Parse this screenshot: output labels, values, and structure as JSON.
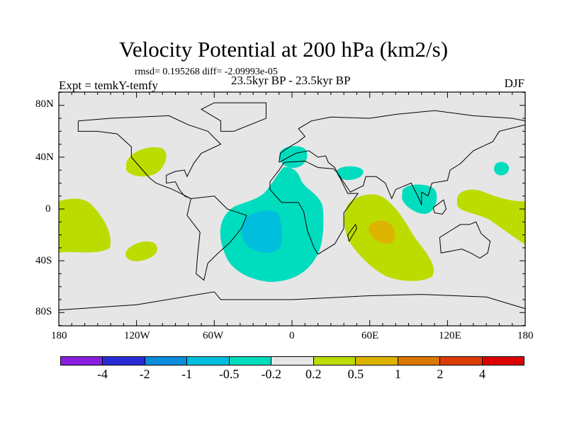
{
  "title": "Velocity Potential at 200 hPa (km2/s)",
  "stats": "rmsd= 0.195268 diff= -2.09993e-05",
  "experiment": "Expt = temkY-temfy",
  "center_label": "23.5kyr BP - 23.5kyr BP",
  "season": "DJF",
  "lat_ticks": [
    "80N",
    "40N",
    "0",
    "40S",
    "80S"
  ],
  "lon_ticks": [
    "180",
    "120W",
    "60W",
    "0",
    "60E",
    "120E",
    "180"
  ],
  "colorbar": {
    "colors": [
      "#8a1ee0",
      "#2b2bd6",
      "#0a8cdc",
      "#00bedc",
      "#00dcbe",
      "#e6e6e6",
      "#bcdc00",
      "#dcb400",
      "#dc7800",
      "#dc3c00",
      "#dc0000"
    ],
    "labels": [
      "-4",
      "-2",
      "-1",
      "-0.5",
      "-0.2",
      "0.2",
      "0.5",
      "1",
      "2",
      "4"
    ]
  },
  "colors": {
    "background": "#e6e6e6",
    "neg_weak": "#00dcbe",
    "neg_mid": "#00bedc",
    "pos_weak": "#bcdc00",
    "pos_mid": "#dcb400"
  }
}
